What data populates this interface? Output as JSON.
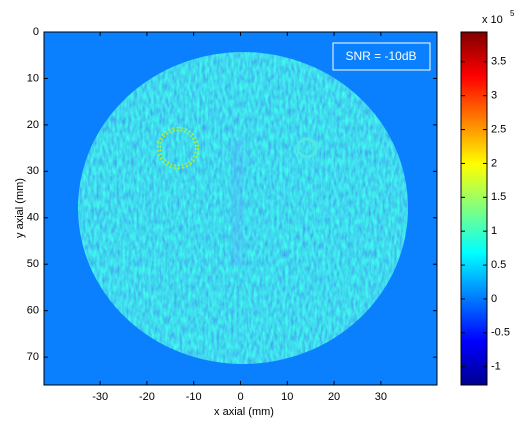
{
  "chart_data": {
    "type": "image",
    "xlabel": "x axial (mm)",
    "ylabel": "y axial (mm)",
    "xlim": [
      -42,
      42
    ],
    "xticks": [
      -30,
      -20,
      -10,
      0,
      10,
      20,
      30
    ],
    "ylim": [
      0,
      76
    ],
    "yticks": [
      0,
      10,
      20,
      30,
      40,
      50,
      60,
      70
    ],
    "y_reversed": true,
    "annotation": "SNR = -10dB",
    "colorbar": {
      "clim": [
        -1.27,
        3.94
      ],
      "ticks": [
        -1,
        -0.5,
        0,
        0.5,
        1,
        1.5,
        2,
        2.5,
        3,
        3.5
      ],
      "multiplier": "x 10",
      "exponent": "5",
      "colormap": "jet"
    }
  }
}
